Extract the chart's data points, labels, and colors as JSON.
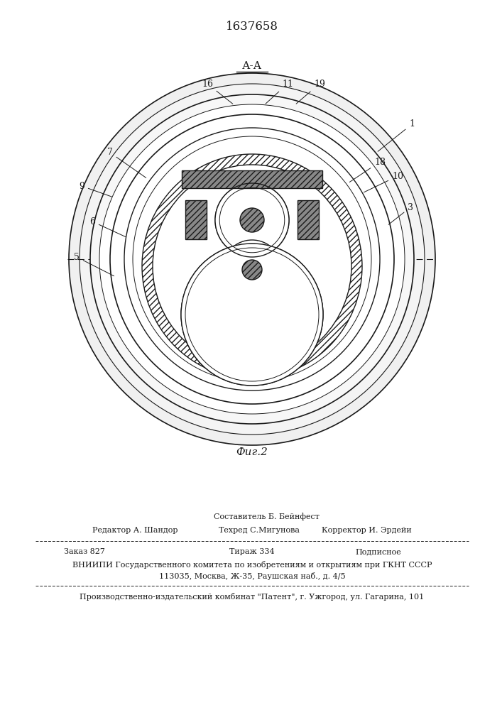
{
  "patent_number": "1637658",
  "section_label": "А-А",
  "fig_label": "Фиг.2",
  "bg_color": "#ffffff",
  "line_color": "#1a1a1a",
  "footer_text1": "Составитель Б. Бейнфест",
  "footer_col1": "Редактор А. Шандор",
  "footer_col2": "Техред С.Мигунова",
  "footer_col3": "Корректор И. Эрдейи",
  "footer_order": "Заказ 827",
  "footer_tirazh": "Тираж 334",
  "footer_podp": "Подписное",
  "footer_vniip1": "ВНИИПИ Государственного комитета по изобретениям и открытиям при ГКНТ СССР",
  "footer_vniip2": "113035, Москва, Ж-35, Раушская наб., д. 4/5",
  "footer_prod": "Производственно-издательский комбинат \"Патент\", г. Ужгород, ул. Гагарина, 101"
}
